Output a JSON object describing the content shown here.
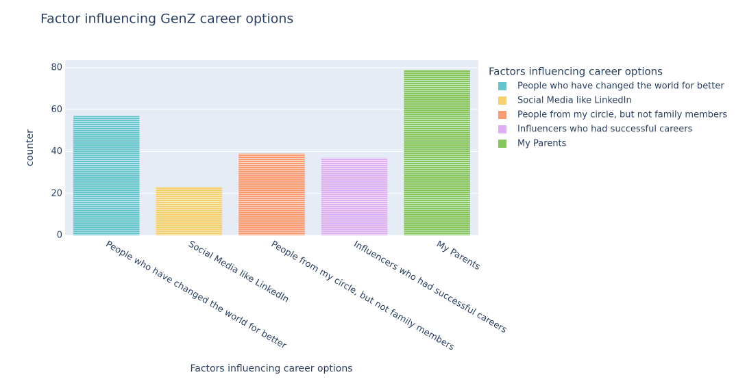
{
  "chart_data": {
    "type": "bar",
    "title": "Factor influencing GenZ career options",
    "x_label": "Factors influencing career options",
    "y_label": "counter",
    "legend_title": "Factors influencing career options",
    "categories": [
      "People who have changed the world for better",
      "Social Media like LinkedIn",
      "People from my circle, but not family members",
      "Influencers who had successful careers",
      "My Parents"
    ],
    "values": [
      57,
      23,
      39,
      37,
      79
    ],
    "colors": [
      "#66c5cc",
      "#f6cf71",
      "#f89c74",
      "#dcb0f2",
      "#87c55f"
    ],
    "ylim": [
      0,
      83.6
    ],
    "yticks": [
      0,
      20,
      40,
      60,
      80
    ],
    "grid": true,
    "legend": "right"
  }
}
